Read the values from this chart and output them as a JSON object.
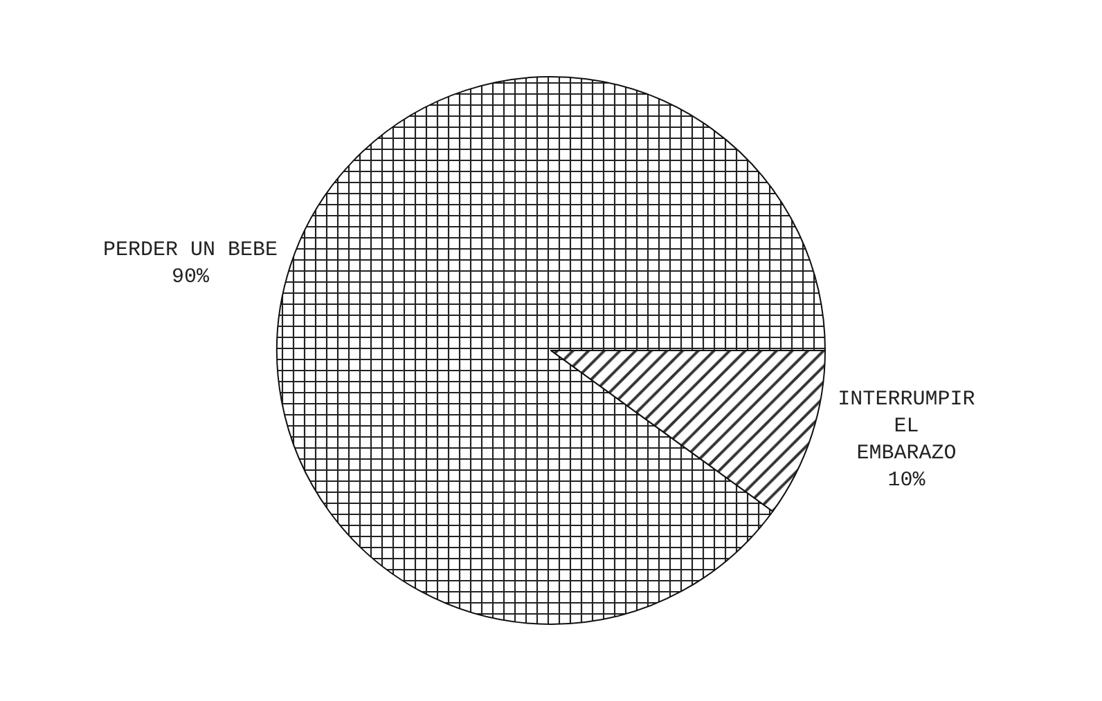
{
  "chart_data": {
    "type": "pie",
    "categories": [
      "PERDER UN BEBE",
      "INTERRUMPIR\nEL\nEMBARAZO"
    ],
    "values": [
      90,
      10
    ],
    "value_labels": [
      "90%",
      "10%"
    ],
    "colors": [
      "#222222",
      "#333333"
    ],
    "legend": false
  }
}
